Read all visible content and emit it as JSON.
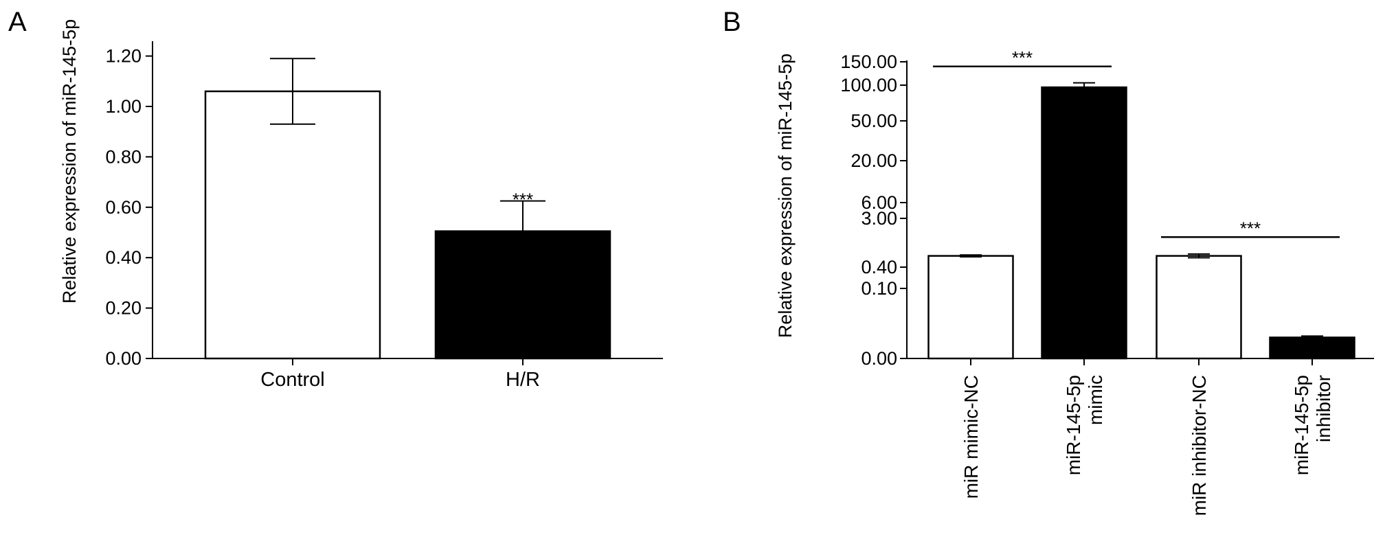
{
  "chart_data": [
    {
      "panel_label": "A",
      "type": "bar",
      "ylabel": "Relative expression of miR-145-5p",
      "ylim": [
        0,
        1.26
      ],
      "yticks": [
        0,
        0.2,
        0.4,
        0.6,
        0.8,
        1.0,
        1.2
      ],
      "ytick_labels": [
        "0.00",
        "0.20",
        "0.40",
        "0.60",
        "0.80",
        "1.00",
        "1.20"
      ],
      "categories": [
        "Control",
        "H/R"
      ],
      "values": [
        1.06,
        0.505
      ],
      "error": [
        0.13,
        0.12
      ],
      "error_direction": [
        "both",
        "up"
      ],
      "bar_colors": [
        "#ffffff",
        "#000000"
      ],
      "annotations": [
        {
          "text": "***",
          "category": "H/R",
          "y": 0.645
        }
      ]
    },
    {
      "panel_label": "B",
      "type": "bar",
      "ylabel": "Relative expression of miR-145-5p",
      "yticks": [
        0,
        0.1,
        0.4,
        3,
        6,
        20,
        50,
        100,
        150
      ],
      "ytick_labels": [
        "0.00",
        "0.10",
        "0.40",
        "3.00",
        "6.00",
        "20.00",
        "50.00",
        "100.00",
        "150.00"
      ],
      "categories": [
        "miR mimic-NC",
        "miR-145-5p mimic",
        "miR inhibitor-NC",
        "miR-145-5p inhibitor"
      ],
      "category_label_lines": [
        [
          "miR mimic-NC"
        ],
        [
          "miR-145-5p",
          "mimic"
        ],
        [
          "miR inhibitor-NC"
        ],
        [
          "miR-145-5p",
          "inhibitor"
        ]
      ],
      "values": [
        1.0,
        97.0,
        1.0,
        0.03
      ],
      "error_low": [
        0.95,
        93.0,
        0.9,
        0.028
      ],
      "error_high": [
        1.05,
        105.0,
        1.1,
        0.032
      ],
      "bar_colors": [
        "#ffffff",
        "#000000",
        "#ffffff",
        "#000000"
      ],
      "significance": [
        {
          "text": "***",
          "from": "miR mimic-NC",
          "to": "miR-145-5p mimic",
          "y": 140
        },
        {
          "text": "***",
          "from": "miR inhibitor-NC",
          "to": "miR-145-5p inhibitor",
          "y": 2.0
        }
      ]
    }
  ]
}
